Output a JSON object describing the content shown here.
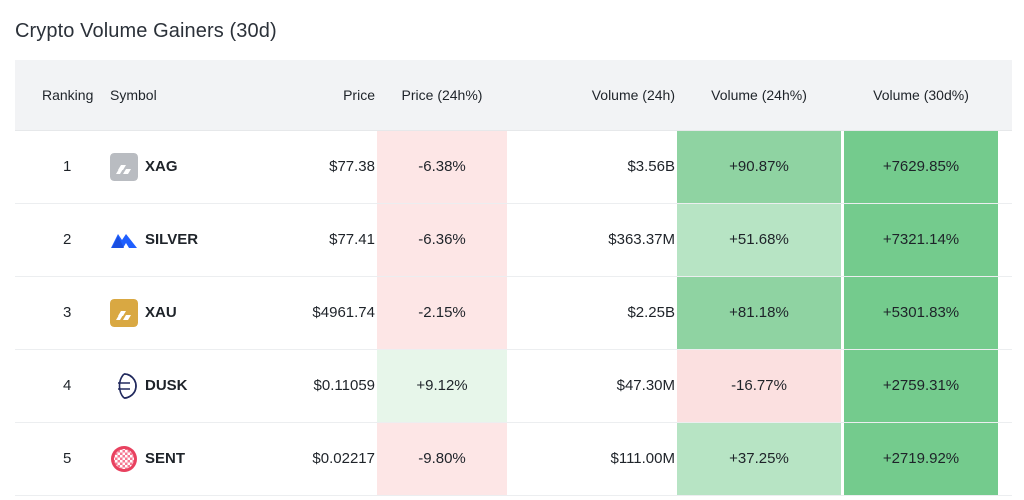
{
  "title": "Crypto Volume Gainers (30d)",
  "headers": {
    "ranking": "Ranking",
    "symbol": "Symbol",
    "price": "Price",
    "price_change": "Price (24h%)",
    "volume": "Volume (24h)",
    "volume_change": "Volume (24h%)",
    "volume_30d": "Volume (30d%)"
  },
  "rows": [
    {
      "rank": "1",
      "symbol": "XAG",
      "icon": "silver-bars-icon",
      "price": "$77.38",
      "price_change": "-6.38%",
      "volume": "$3.56B",
      "volume_change": "+90.87%",
      "volume_30d": "+7629.85%"
    },
    {
      "rank": "2",
      "symbol": "SILVER",
      "icon": "silver-mountain-icon",
      "price": "$77.41",
      "price_change": "-6.36%",
      "volume": "$363.37M",
      "volume_change": "+51.68%",
      "volume_30d": "+7321.14%"
    },
    {
      "rank": "3",
      "symbol": "XAU",
      "icon": "gold-bars-icon",
      "price": "$4961.74",
      "price_change": "-2.15%",
      "volume": "$2.25B",
      "volume_change": "+81.18%",
      "volume_30d": "+5301.83%"
    },
    {
      "rank": "4",
      "symbol": "DUSK",
      "icon": "dusk-logo-icon",
      "price": "$0.11059",
      "price_change": "+9.12%",
      "volume": "$47.30M",
      "volume_change": "-16.77%",
      "volume_30d": "+2759.31%"
    },
    {
      "rank": "5",
      "symbol": "SENT",
      "icon": "sent-logo-icon",
      "price": "$0.02217",
      "price_change": "-9.80%",
      "volume": "$111.00M",
      "volume_change": "+37.25%",
      "volume_30d": "+2719.92%"
    }
  ],
  "colors": {
    "price_neg": "#fde6e6",
    "price_pos": "#e7f6ea",
    "vol_neg": "#fbe0e0",
    "vol_strong": "#8fd3a2",
    "vol_light": "#b7e4c4",
    "vol30": "#74cb8d"
  }
}
